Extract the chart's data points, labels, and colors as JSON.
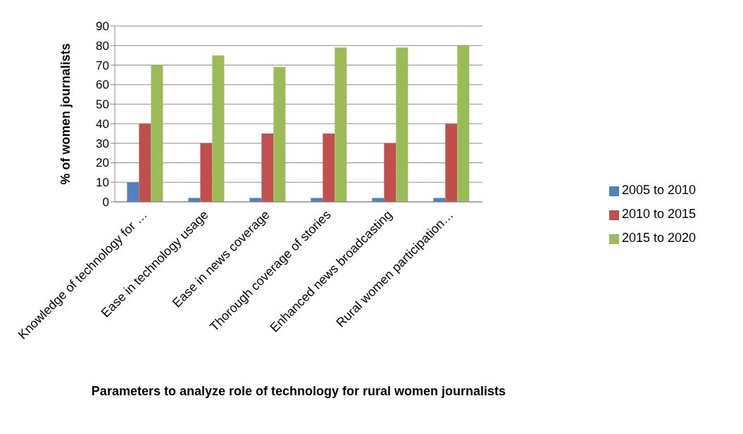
{
  "chart_data": {
    "type": "bar",
    "xlabel": "Parameters to analyze role of technology for rural women journalists",
    "ylabel": "% of women journalists",
    "categories": [
      "Knowledge of technology for …",
      "Ease in technology usage",
      "Ease in news coverage",
      "Thorough coverage of stories",
      "Enhanced news broadcasting",
      "Rural women participation…"
    ],
    "series": [
      {
        "name": "2005 to 2010",
        "color": "#4f81bd",
        "values": [
          10,
          2,
          2,
          2,
          2,
          2
        ]
      },
      {
        "name": "2010 to 2015",
        "color": "#c0504d",
        "values": [
          40,
          30,
          35,
          35,
          30,
          40
        ]
      },
      {
        "name": "2015 to 2020",
        "color": "#9bbb59",
        "values": [
          70,
          75,
          69,
          79,
          79,
          80
        ]
      }
    ],
    "ylim": [
      0,
      90
    ],
    "yticks": [
      0,
      10,
      20,
      30,
      40,
      50,
      60,
      70,
      80,
      90
    ],
    "grid": "y",
    "legend": "right"
  }
}
